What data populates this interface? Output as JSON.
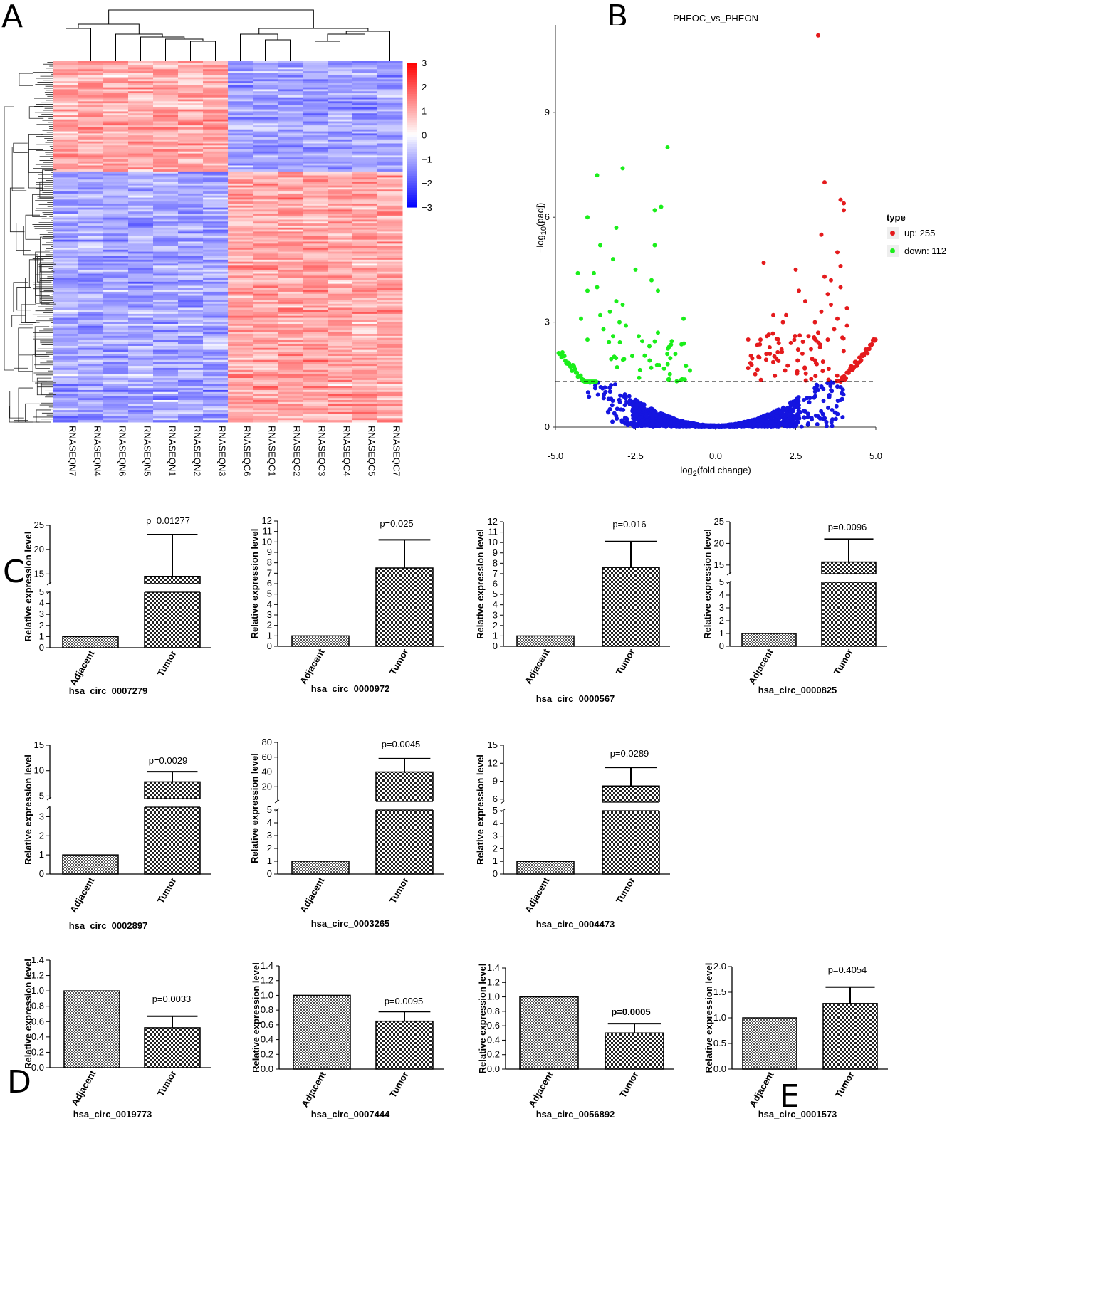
{
  "panel_labels": [
    "A",
    "B",
    "C",
    "D",
    "E"
  ],
  "colors": {
    "up": "#e41a1c",
    "down": "#1aee1a",
    "ns": "#1515e0",
    "heat_low": "#0000ff",
    "heat_mid": "#ffffff",
    "heat_high": "#ff0000",
    "bar_fill": "#7a7a7a"
  },
  "chart_data": [
    {
      "id": "heatmap",
      "type": "heatmap",
      "columns": [
        "RNASEQN7",
        "RNASEQN4",
        "RNASEQN6",
        "RNASEQN5",
        "RNASEQN1",
        "RNASEQN2",
        "RNASEQN3",
        "RNASEQC6",
        "RNASEQC1",
        "RNASEQC2",
        "RNASEQC3",
        "RNASEQC4",
        "RNASEQC5",
        "RNASEQC7"
      ],
      "colorbar_ticks": [
        3,
        2,
        1,
        0,
        -1,
        -2,
        -3
      ],
      "colorbar_labels": [
        "3",
        "2",
        "1",
        "0",
        "−1",
        "−2",
        "−3"
      ],
      "vrange": [
        -3,
        3
      ]
    },
    {
      "id": "volcano",
      "type": "scatter",
      "title": "PHEOC_vs_PHEON",
      "xlabel_main": "log",
      "xlabel_sub": "2",
      "xlabel_rest": "(fold change)",
      "ylabel_main": "−log",
      "ylabel_sub": "10",
      "ylabel_rest": "(padj)",
      "xlim": [
        -5,
        5
      ],
      "ylim": [
        0,
        11.5
      ],
      "xticks": [
        -5,
        -2.5,
        0,
        2.5,
        5
      ],
      "xtick_labels": [
        "-5.0",
        "-2.5",
        "0.0",
        "2.5",
        "5.0"
      ],
      "yticks": [
        0,
        3,
        6,
        9
      ],
      "ytick_labels": [
        "0",
        "3",
        "6",
        "9"
      ],
      "threshold": 1.3,
      "legend_title": "type",
      "legend": [
        {
          "label": "up: 255",
          "key": "up"
        },
        {
          "label": "down: 112",
          "key": "down"
        }
      ],
      "highlight_up": [
        [
          3.2,
          11.2
        ],
        [
          3.4,
          7.0
        ],
        [
          3.9,
          6.5
        ],
        [
          4.0,
          6.4
        ],
        [
          4.0,
          6.2
        ],
        [
          3.3,
          5.5
        ],
        [
          3.8,
          5.0
        ],
        [
          3.9,
          4.6
        ],
        [
          1.5,
          4.7
        ],
        [
          3.4,
          4.3
        ],
        [
          2.5,
          4.5
        ],
        [
          3.9,
          4.0
        ],
        [
          3.6,
          4.2
        ],
        [
          2.6,
          3.9
        ],
        [
          3.5,
          3.8
        ],
        [
          2.8,
          3.6
        ],
        [
          3.6,
          3.5
        ],
        [
          4.1,
          3.4
        ],
        [
          3.3,
          3.3
        ],
        [
          2.2,
          3.2
        ],
        [
          3.8,
          3.1
        ],
        [
          1.8,
          3.2
        ],
        [
          3.1,
          3.0
        ],
        [
          2.1,
          3.0
        ],
        [
          3.2,
          2.7
        ],
        [
          4.1,
          2.9
        ],
        [
          3.7,
          2.8
        ],
        [
          1.6,
          2.6
        ],
        [
          1.4,
          2.5
        ],
        [
          2.9,
          2.6
        ],
        [
          3.5,
          2.5
        ]
      ],
      "highlight_down": [
        [
          -1.5,
          8.0
        ],
        [
          -2.9,
          7.4
        ],
        [
          -3.7,
          7.2
        ],
        [
          -1.7,
          6.3
        ],
        [
          -1.9,
          6.2
        ],
        [
          -4.0,
          6.0
        ],
        [
          -3.1,
          5.7
        ],
        [
          -3.6,
          5.2
        ],
        [
          -1.9,
          5.2
        ],
        [
          -4.3,
          4.4
        ],
        [
          -3.8,
          4.4
        ],
        [
          -2.5,
          4.5
        ],
        [
          -3.2,
          4.8
        ],
        [
          -2.0,
          4.2
        ],
        [
          -3.7,
          4.0
        ],
        [
          -4.0,
          3.9
        ],
        [
          -1.8,
          3.9
        ],
        [
          -3.1,
          3.6
        ],
        [
          -2.9,
          3.5
        ],
        [
          -3.3,
          3.3
        ],
        [
          -3.6,
          3.2
        ],
        [
          -4.2,
          3.1
        ],
        [
          -3.0,
          3.0
        ],
        [
          -2.8,
          2.9
        ],
        [
          -1.0,
          3.1
        ],
        [
          -3.5,
          2.8
        ],
        [
          -1.8,
          2.7
        ],
        [
          -3.2,
          2.6
        ],
        [
          -4.0,
          2.5
        ],
        [
          -2.4,
          2.6
        ]
      ]
    },
    {
      "id": "c1",
      "type": "bar",
      "title": "hsa_circ_0007279",
      "ylabel": "Relative expression level",
      "categories": [
        "Adjacent",
        "Tumor"
      ],
      "values": [
        1,
        14.5
      ],
      "errors": [
        0,
        8.6
      ],
      "p_label": "p=0.01277",
      "p_bold": false,
      "axis_break": true,
      "lower_range": [
        0,
        5
      ],
      "upper_range": [
        13,
        25
      ],
      "lower_ticks": [
        0,
        1,
        2,
        3,
        4,
        5
      ],
      "upper_ticks": [
        15,
        20,
        25
      ],
      "lower_tick_labels": [
        "0",
        "1",
        "2",
        "3",
        "4",
        "5"
      ],
      "upper_tick_labels": [
        "15",
        "20",
        "25"
      ]
    },
    {
      "id": "c2",
      "type": "bar",
      "title": "hsa_circ_0000972",
      "ylabel": "Relative expression level",
      "categories": [
        "Adjacent",
        "Tumor"
      ],
      "values": [
        1,
        7.5
      ],
      "errors": [
        0,
        2.7
      ],
      "p_label": "p=0.025",
      "p_bold": false,
      "axis_break": false,
      "ylim": [
        0,
        12
      ],
      "yticks": [
        0,
        1,
        2,
        3,
        4,
        5,
        6,
        7,
        8,
        9,
        10,
        11,
        12
      ],
      "ytick_labels": [
        "0",
        "1",
        "2",
        "3",
        "4",
        "5",
        "6",
        "7",
        "8",
        "9",
        "10",
        "11",
        "12"
      ]
    },
    {
      "id": "c3",
      "type": "bar",
      "title": "hsa_circ_0000567",
      "ylabel": "Relative expression level",
      "categories": [
        "Adjacent",
        "Tumor"
      ],
      "values": [
        1,
        7.6
      ],
      "errors": [
        0,
        2.5
      ],
      "p_label": "p=0.016",
      "p_bold": false,
      "axis_break": false,
      "ylim": [
        0,
        12
      ],
      "yticks": [
        0,
        1,
        2,
        3,
        4,
        5,
        6,
        7,
        8,
        9,
        10,
        11,
        12
      ],
      "ytick_labels": [
        "0",
        "1",
        "2",
        "3",
        "4",
        "5",
        "6",
        "7",
        "8",
        "9",
        "10",
        "11",
        "12"
      ]
    },
    {
      "id": "c4",
      "type": "bar",
      "title": "hsa_circ_0000825",
      "ylabel": "Relative expression level",
      "categories": [
        "Adjacent",
        "Tumor"
      ],
      "values": [
        1,
        15.7
      ],
      "errors": [
        0,
        5.3
      ],
      "p_label": "p=0.0096",
      "p_bold": false,
      "axis_break": true,
      "lower_range": [
        0,
        5
      ],
      "upper_range": [
        13,
        25
      ],
      "lower_ticks": [
        0,
        1,
        2,
        3,
        4,
        5
      ],
      "upper_ticks": [
        15,
        20,
        25
      ],
      "lower_tick_labels": [
        "0",
        "1",
        "2",
        "3",
        "4",
        "5"
      ],
      "upper_tick_labels": [
        "15",
        "20",
        "25"
      ]
    },
    {
      "id": "c5",
      "type": "bar",
      "title": "hsa_circ_0002897",
      "ylabel": "Relative expression level",
      "categories": [
        "Adjacent",
        "Tumor"
      ],
      "values": [
        1,
        7.8
      ],
      "errors": [
        0,
        2.0
      ],
      "p_label": "p=0.0029",
      "p_bold": false,
      "axis_break": true,
      "lower_range": [
        0,
        3.5
      ],
      "upper_range": [
        4.5,
        15
      ],
      "lower_ticks": [
        0,
        1,
        2,
        3
      ],
      "upper_ticks": [
        5,
        10,
        15
      ],
      "lower_tick_labels": [
        "0",
        "1",
        "2",
        "3"
      ],
      "upper_tick_labels": [
        "5",
        "10",
        "15"
      ]
    },
    {
      "id": "c6",
      "type": "bar",
      "title": "hsa_circ_0003265",
      "ylabel": "Relative expression level",
      "categories": [
        "Adjacent",
        "Tumor"
      ],
      "values": [
        1,
        40
      ],
      "errors": [
        0,
        18
      ],
      "p_label": "p=0.0045",
      "p_bold": false,
      "axis_break": true,
      "lower_range": [
        0,
        5
      ],
      "upper_range": [
        0,
        80
      ],
      "lower_ticks": [
        0,
        1,
        2,
        3,
        4,
        5
      ],
      "upper_ticks": [
        20,
        40,
        60,
        80
      ],
      "lower_tick_labels": [
        "0",
        "1",
        "2",
        "3",
        "4",
        "5"
      ],
      "upper_tick_labels": [
        "20",
        "40",
        "60",
        "80"
      ]
    },
    {
      "id": "c7",
      "type": "bar",
      "title": "hsa_circ_0004473",
      "ylabel": "Relative expression level",
      "categories": [
        "Adjacent",
        "Tumor"
      ],
      "values": [
        1,
        8.2
      ],
      "errors": [
        0,
        3.1
      ],
      "p_label": "p=0.0289",
      "p_bold": false,
      "axis_break": true,
      "lower_range": [
        0,
        5
      ],
      "upper_range": [
        5.5,
        15
      ],
      "lower_ticks": [
        0,
        1,
        2,
        3,
        4,
        5
      ],
      "upper_ticks": [
        6,
        9,
        12,
        15
      ],
      "lower_tick_labels": [
        "0",
        "1",
        "2",
        "3",
        "4",
        "5"
      ],
      "upper_tick_labels": [
        "6",
        "9",
        "12",
        "15"
      ]
    },
    {
      "id": "d1",
      "type": "bar",
      "title": "hsa_circ_0019773",
      "ylabel": "Relative expression level",
      "categories": [
        "Adjacent",
        "Tumor"
      ],
      "values": [
        1.0,
        0.52
      ],
      "errors": [
        0,
        0.15
      ],
      "p_label": "p=0.0033",
      "p_bold": false,
      "axis_break": false,
      "ylim": [
        0,
        1.4
      ],
      "yticks": [
        0,
        0.2,
        0.4,
        0.6,
        0.8,
        1.0,
        1.2,
        1.4
      ],
      "ytick_labels": [
        "0.0",
        "0.2",
        "0.4",
        "0.6",
        "0.8",
        "1.0",
        "1.2",
        "1.4"
      ]
    },
    {
      "id": "d2",
      "type": "bar",
      "title": "hsa_circ_0007444",
      "ylabel": "Relative expression level",
      "categories": [
        "Adjacent",
        "Tumor"
      ],
      "values": [
        1.0,
        0.65
      ],
      "errors": [
        0,
        0.13
      ],
      "p_label": "p=0.0095",
      "p_bold": false,
      "axis_break": false,
      "ylim": [
        0,
        1.4
      ],
      "yticks": [
        0,
        0.2,
        0.4,
        0.6,
        0.8,
        1.0,
        1.2,
        1.4
      ],
      "ytick_labels": [
        "0.0",
        "0.2",
        "0.4",
        "0.6",
        "0.8",
        "1.0",
        "1.2",
        "1.4"
      ]
    },
    {
      "id": "d3",
      "type": "bar",
      "title": "hsa_circ_0056892",
      "ylabel": "Relative expression level",
      "categories": [
        "Adjacent",
        "Tumor"
      ],
      "values": [
        1.0,
        0.5
      ],
      "errors": [
        0,
        0.13
      ],
      "p_label": "p=0.0005",
      "p_bold": true,
      "axis_break": false,
      "ylim": [
        0,
        1.4
      ],
      "yticks": [
        0,
        0.2,
        0.4,
        0.6,
        0.8,
        1.0,
        1.2,
        1.4
      ],
      "ytick_labels": [
        "0.0",
        "0.2",
        "0.4",
        "0.6",
        "0.8",
        "1.0",
        "1.2",
        "1.4"
      ]
    },
    {
      "id": "e1",
      "type": "bar",
      "title": "hsa_circ_0001573",
      "ylabel": "Relative expression level",
      "categories": [
        "Adjacent",
        "Tumor"
      ],
      "values": [
        1.0,
        1.28
      ],
      "errors": [
        0,
        0.32
      ],
      "p_label": "p=0.4054",
      "p_bold": false,
      "axis_break": false,
      "ylim": [
        0,
        2.0
      ],
      "yticks": [
        0,
        0.5,
        1.0,
        1.5,
        2.0
      ],
      "ytick_labels": [
        "0.0",
        "0.5",
        "1.0",
        "1.5",
        "2.0"
      ]
    }
  ]
}
